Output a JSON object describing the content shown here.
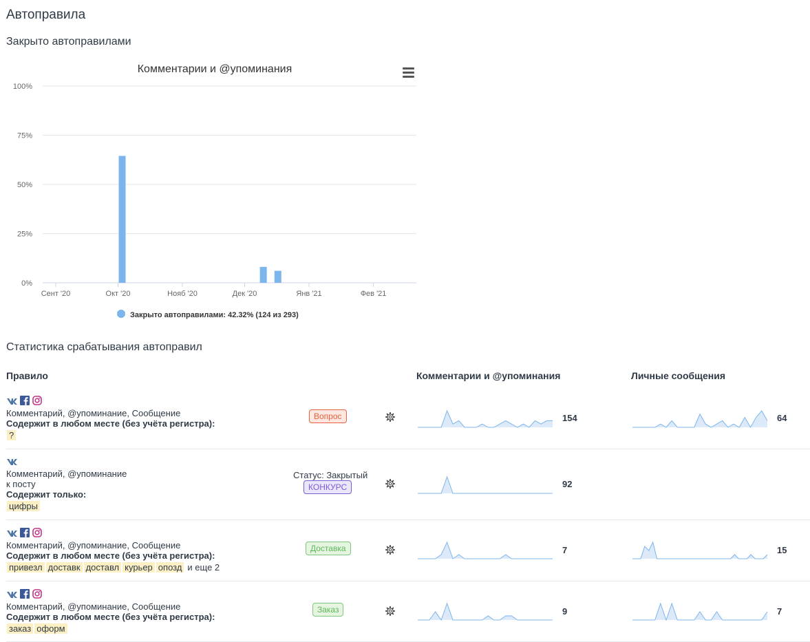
{
  "page": {
    "title": "Автоправила",
    "closed_title": "Закрыто автоправилами",
    "stats_title": "Статистика срабатывания автоправил"
  },
  "chart_data": {
    "type": "bar",
    "title": "Комментарии и @упоминания",
    "x": [
      "2020-09-22",
      "2020-10-07",
      "2020-11-22",
      "2020-12-07",
      "2020-12-14",
      "2021-01-22",
      "2021-02-22"
    ],
    "categories_ticks": [
      "Сент '20",
      "Окт '20",
      "Нояб '20",
      "Дек '20",
      "Янв '21",
      "Фев '21"
    ],
    "bars": [
      {
        "date": "2020-10-03",
        "value": 64.5
      },
      {
        "date": "2020-12-10",
        "value": 8.1
      },
      {
        "date": "2020-12-17",
        "value": 6.1
      }
    ],
    "y_ticks": [
      "0%",
      "25%",
      "50%",
      "75%",
      "100%"
    ],
    "ylim": [
      0,
      100
    ],
    "legend": "Закрыто автоправилами: 42.32% (124 из 293)",
    "legend_position": "bottom",
    "series_color": "#7cb5ec",
    "grid": true
  },
  "table": {
    "col_rule": "Правило",
    "col_comments": "Комментарии и @упоминания",
    "col_messages": "Личные сообщения",
    "rows": [
      {
        "networks": [
          "vk-icon",
          "facebook-icon",
          "instagram-icon"
        ],
        "line1": "Комментарий, @упоминание, Сообщение",
        "cond": "Содержит в любом месте (без учёта регистра):",
        "keywords": [
          "?"
        ],
        "tag": "Вопрос",
        "comments_count": "154",
        "messages_count": "64",
        "spark_c": [
          0,
          0,
          0,
          0,
          0,
          5,
          1,
          2,
          0,
          0,
          0,
          1,
          0,
          0,
          1,
          2,
          1,
          0,
          1,
          0,
          2,
          1,
          2,
          2
        ],
        "spark_m": [
          0,
          0,
          0,
          0,
          0,
          1,
          0,
          2,
          0,
          0,
          0,
          0,
          4,
          1,
          0,
          1,
          2,
          0,
          1,
          0,
          3,
          0,
          3,
          5,
          2
        ]
      },
      {
        "networks": [
          "vk-icon"
        ],
        "line1": "Комментарий, @упоминание",
        "line2": "к посту",
        "cond": "Содержит только:",
        "keywords": [
          "цифры"
        ],
        "status": "Статус: Закрытый",
        "tag": "КОНКУРС",
        "comments_count": "92",
        "spark_c": [
          0,
          0,
          0,
          0,
          0,
          6,
          0,
          0,
          0,
          0,
          0,
          0,
          0,
          0,
          0,
          0,
          0,
          0,
          0,
          0,
          0,
          0,
          0,
          0
        ]
      },
      {
        "networks": [
          "vk-icon",
          "facebook-icon",
          "instagram-icon"
        ],
        "line1": "Комментарий, @упоминание, Сообщение",
        "cond": "Содержит в любом месте (без учёта регистра):",
        "keywords": [
          "привезл",
          "доставк",
          "доставл",
          "курьер",
          "опозд"
        ],
        "more": "и еще 2",
        "tag": "Доставка",
        "comments_count": "7",
        "messages_count": "15",
        "spark_c": [
          0,
          0,
          0,
          0,
          1,
          4,
          0,
          1,
          0,
          0,
          0,
          0,
          0,
          0,
          0,
          1,
          0,
          0,
          0,
          0,
          0,
          0,
          0,
          0
        ],
        "spark_m": [
          0,
          0,
          0,
          3,
          2,
          4,
          0,
          0,
          0,
          0,
          0,
          0,
          0,
          0,
          0,
          0,
          0,
          0,
          0,
          0,
          0,
          0,
          0,
          0,
          0,
          1,
          0,
          0,
          0,
          1,
          0,
          0,
          0,
          1
        ]
      },
      {
        "networks": [
          "vk-icon",
          "facebook-icon",
          "instagram-icon"
        ],
        "line1": "Комментарий, @упоминание, Сообщение",
        "cond": "Содержит в любом месте (без учёта регистра):",
        "keywords": [
          "заказ",
          "оформ"
        ],
        "tag": "Заказ",
        "comments_count": "9",
        "messages_count": "7",
        "spark_c": [
          0,
          0,
          0,
          2,
          0,
          4,
          0,
          0,
          0,
          0,
          0,
          0,
          1,
          0,
          0,
          1,
          1,
          0,
          0,
          0,
          0,
          0,
          0,
          0
        ],
        "spark_m": [
          0,
          0,
          0,
          0,
          0,
          4,
          0,
          4,
          0,
          0,
          0,
          0,
          2,
          0,
          0,
          2,
          0,
          0,
          0,
          0,
          0,
          0,
          0,
          0,
          2
        ]
      }
    ]
  }
}
